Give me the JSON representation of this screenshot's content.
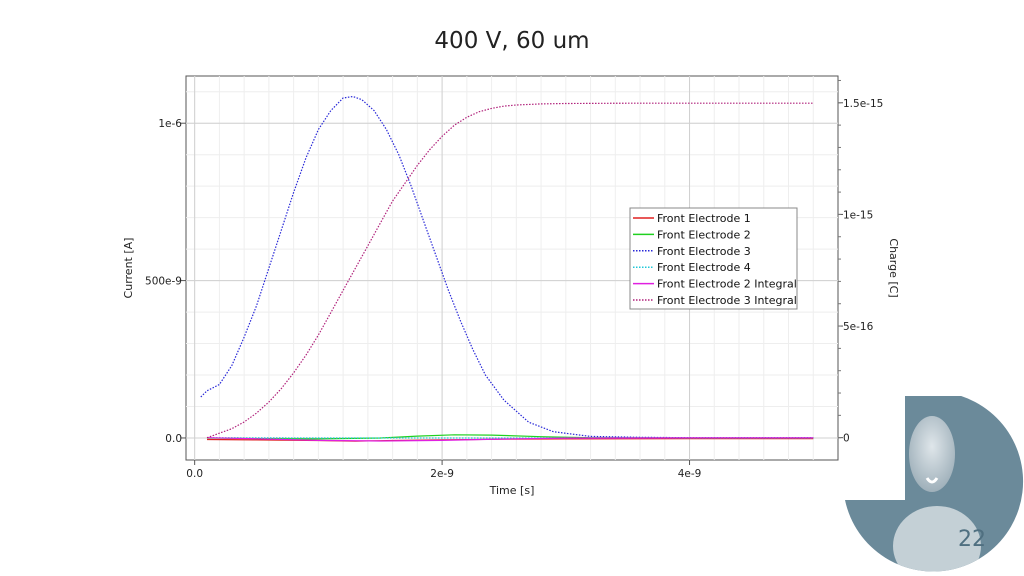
{
  "slide": {
    "title": "400 V,  60 um",
    "page_number": "22"
  },
  "chart_data": {
    "type": "line",
    "xlabel": "Time [s]",
    "ylabel": "Current [A]",
    "y2label": "Charge [C]",
    "xlim": [
      -7e-11,
      5.2e-09
    ],
    "ylim": [
      -7e-08,
      1.15e-06
    ],
    "y2lim": [
      -1e-16,
      1.62e-15
    ],
    "x_ticks": [
      {
        "v": 0,
        "label": "0.0"
      },
      {
        "v": 2e-09,
        "label": "2e-9"
      },
      {
        "v": 4e-09,
        "label": "4e-9"
      }
    ],
    "y_ticks": [
      {
        "v": 0,
        "label": "0.0"
      },
      {
        "v": 5e-07,
        "label": "500e-9"
      },
      {
        "v": 1e-06,
        "label": "1e-6"
      }
    ],
    "y2_ticks": [
      {
        "v": 0,
        "label": "0"
      },
      {
        "v": 5e-16,
        "label": "5e-16"
      },
      {
        "v": 1e-15,
        "label": "1e-15"
      },
      {
        "v": 1.5e-15,
        "label": "1.5e-15"
      }
    ],
    "grid": true,
    "legend_position": "right-center",
    "series": [
      {
        "name": "Front Electrode 1",
        "axis": "left",
        "color": "#e02020",
        "style": "solid",
        "x": [
          1e-10,
          5e-10,
          1e-09,
          1.3e-09,
          1.6e-09,
          2e-09,
          2.5e-09,
          3e-09,
          4e-09,
          5e-09
        ],
        "y": [
          -5e-09,
          -6e-09,
          -8e-09,
          -1e-08,
          -8e-09,
          -6e-09,
          -4e-09,
          -3e-09,
          -2e-09,
          -2e-09
        ]
      },
      {
        "name": "Front Electrode 2",
        "axis": "left",
        "color": "#20d020",
        "style": "solid",
        "x": [
          1e-10,
          5e-10,
          1e-09,
          1.5e-09,
          1.8e-09,
          2.1e-09,
          2.4e-09,
          2.8e-09,
          3.2e-09,
          4e-09,
          5e-09
        ],
        "y": [
          0.0,
          -2e-09,
          -3e-09,
          0.0,
          6e-09,
          1e-08,
          9e-09,
          4e-09,
          1e-09,
          0.0,
          0.0
        ]
      },
      {
        "name": "Front Electrode 3",
        "axis": "left",
        "color": "#2828d8",
        "style": "dotted",
        "x": [
          5e-11,
          1e-10,
          2e-10,
          3e-10,
          4e-10,
          5e-10,
          6e-10,
          7e-10,
          8e-10,
          9e-10,
          1e-09,
          1.1e-09,
          1.2e-09,
          1.28e-09,
          1.35e-09,
          1.45e-09,
          1.55e-09,
          1.65e-09,
          1.75e-09,
          1.85e-09,
          1.95e-09,
          2.05e-09,
          2.15e-09,
          2.25e-09,
          2.35e-09,
          2.5e-09,
          2.7e-09,
          2.9e-09,
          3.2e-09,
          3.6e-09,
          4e-09,
          5e-09
        ],
        "y": [
          1.3e-07,
          1.5e-07,
          1.7e-07,
          2.3e-07,
          3.2e-07,
          4.2e-07,
          5.4e-07,
          6.6e-07,
          7.8e-07,
          8.9e-07,
          9.8e-07,
          1.04e-06,
          1.08e-06,
          1.085e-06,
          1.075e-06,
          1.04e-06,
          9.8e-07,
          9e-07,
          8e-07,
          6.9e-07,
          5.8e-07,
          4.7e-07,
          3.7e-07,
          2.8e-07,
          2e-07,
          1.2e-07,
          5e-08,
          2e-08,
          5e-09,
          2e-09,
          1e-09,
          1e-09
        ]
      },
      {
        "name": "Front Electrode 4",
        "axis": "left",
        "color": "#20c8d8",
        "style": "dotted",
        "x": [
          1e-10,
          1e-09,
          2e-09,
          3e-09,
          4e-09,
          5e-09
        ],
        "y": [
          1e-09,
          0.0,
          0.0,
          0.0,
          0.0,
          0.0
        ]
      },
      {
        "name": "Front Electrode 2 Integral",
        "axis": "right",
        "color": "#e020e0",
        "style": "solid",
        "x": [
          1e-10,
          5e-10,
          1e-09,
          1.5e-09,
          2e-09,
          2.5e-09,
          3e-09,
          4e-09,
          5e-09
        ],
        "y": [
          0.0,
          -5e-18,
          -1.2e-17,
          -1.5e-17,
          -1.2e-17,
          -6e-18,
          -2e-18,
          -1e-18,
          -1e-18
        ]
      },
      {
        "name": "Front Electrode 3 Integral",
        "axis": "right",
        "color": "#b0207a",
        "style": "dotted",
        "x": [
          1e-10,
          2e-10,
          3e-10,
          4e-10,
          5e-10,
          6e-10,
          7e-10,
          8e-10,
          9e-10,
          1e-09,
          1.1e-09,
          1.2e-09,
          1.3e-09,
          1.4e-09,
          1.5e-09,
          1.6e-09,
          1.7e-09,
          1.8e-09,
          1.9e-09,
          2e-09,
          2.1e-09,
          2.2e-09,
          2.3e-09,
          2.4e-09,
          2.5e-09,
          2.6e-09,
          2.8e-09,
          3e-09,
          3.5e-09,
          4e-09,
          5e-09
        ],
        "y": [
          0.0,
          2e-17,
          4e-17,
          7e-17,
          1.1e-16,
          1.6e-16,
          2.2e-16,
          2.9e-16,
          3.7e-16,
          4.6e-16,
          5.6e-16,
          6.6e-16,
          7.6e-16,
          8.6e-16,
          9.6e-16,
          1.06e-15,
          1.14e-15,
          1.22e-15,
          1.29e-15,
          1.35e-15,
          1.4e-15,
          1.435e-15,
          1.46e-15,
          1.475e-15,
          1.485e-15,
          1.49e-15,
          1.495e-15,
          1.497e-15,
          1.498e-15,
          1.498e-15,
          1.498e-15
        ]
      }
    ]
  }
}
